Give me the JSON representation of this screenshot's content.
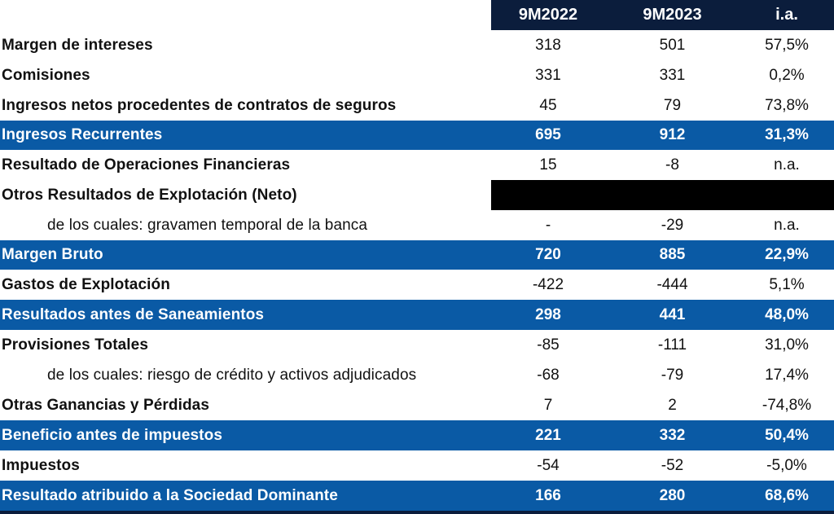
{
  "header": {
    "col1": "9M2022",
    "col2": "9M2023",
    "col3": "i.a."
  },
  "rows": [
    {
      "label": "Margen de intereses",
      "v1": "318",
      "v2": "501",
      "v3": "57,5%"
    },
    {
      "label": "Comisiones",
      "v1": "331",
      "v2": "331",
      "v3": "0,2%"
    },
    {
      "label": "Ingresos netos procedentes de contratos de seguros",
      "v1": "45",
      "v2": "79",
      "v3": "73,8%"
    },
    {
      "label": "Ingresos Recurrentes",
      "v1": "695",
      "v2": "912",
      "v3": "31,3%"
    },
    {
      "label": "Resultado de Operaciones Financieras",
      "v1": "15",
      "v2": "-8",
      "v3": "n.a."
    },
    {
      "label": "Otros Resultados de Explotación (Neto)",
      "v1": "",
      "v2": "",
      "v3": ""
    },
    {
      "label": "de los cuales: gravamen temporal de la banca",
      "v1": "-",
      "v2": "-29",
      "v3": "n.a."
    },
    {
      "label": "Margen Bruto",
      "v1": "720",
      "v2": "885",
      "v3": "22,9%"
    },
    {
      "label": "Gastos de Explotación",
      "v1": "-422",
      "v2": "-444",
      "v3": "5,1%"
    },
    {
      "label": "Resultados antes de Saneamientos",
      "v1": "298",
      "v2": "441",
      "v3": "48,0%"
    },
    {
      "label": "Provisiones Totales",
      "v1": "-85",
      "v2": "-111",
      "v3": "31,0%"
    },
    {
      "label": "de los cuales: riesgo de crédito y activos adjudicados",
      "v1": "-68",
      "v2": "-79",
      "v3": "17,4%"
    },
    {
      "label": "Otras Ganancias y Pérdidas",
      "v1": "7",
      "v2": "2",
      "v3": "-74,8%"
    },
    {
      "label": "Beneficio antes de impuestos",
      "v1": "221",
      "v2": "332",
      "v3": "50,4%"
    },
    {
      "label": "Impuestos",
      "v1": "-54",
      "v2": "-52",
      "v3": "-5,0%"
    },
    {
      "label": "Resultado atribuido a la Sociedad Dominante",
      "v1": "166",
      "v2": "280",
      "v3": "68,6%"
    }
  ],
  "colors": {
    "header_bg": "#0b1d3c",
    "highlight_row": "#0a5aa5"
  }
}
